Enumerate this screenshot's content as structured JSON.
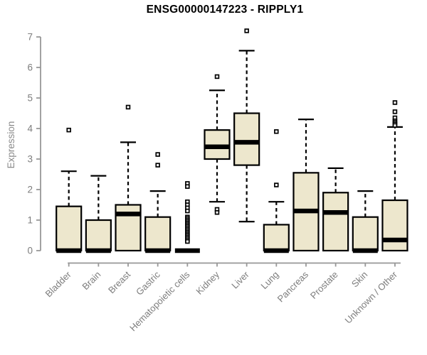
{
  "chart_data": {
    "type": "boxplot",
    "title": "ENSG00000147223 - RIPPLY1",
    "xlabel": "",
    "ylabel": "Expression",
    "ylim": [
      0,
      7
    ],
    "yticks": [
      0,
      1,
      2,
      3,
      4,
      5,
      6,
      7
    ],
    "grid": false,
    "legend": false,
    "categories": [
      "Bladder",
      "Brain",
      "Breast",
      "Gastric",
      "Hematopoietic cells",
      "Kidney",
      "Liver",
      "Lung",
      "Pancreas",
      "Prostate",
      "Skin",
      "Unknown / Other"
    ],
    "boxes": [
      {
        "category": "Bladder",
        "whisker_low": 0,
        "q1": 0,
        "median": 0,
        "q3": 1.45,
        "whisker_high": 2.6,
        "outliers": [
          3.95
        ]
      },
      {
        "category": "Brain",
        "whisker_low": 0,
        "q1": 0,
        "median": 0,
        "q3": 1.0,
        "whisker_high": 2.45,
        "outliers": []
      },
      {
        "category": "Breast",
        "whisker_low": 0,
        "q1": 0,
        "median": 1.2,
        "q3": 1.5,
        "whisker_high": 3.55,
        "outliers": [
          4.7
        ]
      },
      {
        "category": "Gastric",
        "whisker_low": 0,
        "q1": 0,
        "median": 0,
        "q3": 1.1,
        "whisker_high": 1.95,
        "outliers": [
          3.15,
          2.8
        ]
      },
      {
        "category": "Hematopoietic cells",
        "whisker_low": 0,
        "q1": 0,
        "median": 0,
        "q3": 0,
        "whisker_high": 0,
        "outliers": [
          2.2,
          2.1,
          1.6,
          1.5,
          1.4,
          1.3,
          1.1,
          1.05,
          1.0,
          0.95,
          0.9,
          0.85,
          0.8,
          0.75,
          0.7,
          0.65,
          0.6,
          0.55,
          0.5,
          0.45,
          0.4,
          0.35,
          0.3
        ]
      },
      {
        "category": "Kidney",
        "whisker_low": 1.6,
        "q1": 3.0,
        "median": 3.4,
        "q3": 3.95,
        "whisker_high": 5.25,
        "outliers": [
          5.7,
          1.35,
          1.25
        ]
      },
      {
        "category": "Liver",
        "whisker_low": 0.95,
        "q1": 2.8,
        "median": 3.55,
        "q3": 4.5,
        "whisker_high": 6.55,
        "outliers": [
          7.2
        ]
      },
      {
        "category": "Lung",
        "whisker_low": 0,
        "q1": 0,
        "median": 0,
        "q3": 0.85,
        "whisker_high": 1.6,
        "outliers": [
          3.9,
          2.15
        ]
      },
      {
        "category": "Pancreas",
        "whisker_low": 0,
        "q1": 0,
        "median": 1.3,
        "q3": 2.55,
        "whisker_high": 4.3,
        "outliers": []
      },
      {
        "category": "Prostate",
        "whisker_low": 0,
        "q1": 0,
        "median": 1.25,
        "q3": 1.9,
        "whisker_high": 2.7,
        "outliers": []
      },
      {
        "category": "Skin",
        "whisker_low": 0,
        "q1": 0,
        "median": 0,
        "q3": 1.1,
        "whisker_high": 1.95,
        "outliers": []
      },
      {
        "category": "Unknown / Other",
        "whisker_low": 0,
        "q1": 0,
        "median": 0.35,
        "q3": 1.65,
        "whisker_high": 4.05,
        "outliers": [
          4.85,
          4.55,
          4.35,
          4.25,
          4.2,
          4.15,
          4.1
        ]
      }
    ],
    "style": {
      "box_fill": "#EDE7CD",
      "box_stroke": "#000000",
      "median_color": "#000000",
      "whisker_color": "#000000",
      "outlier_color": "#000000",
      "axis_color": "#989898",
      "label_color": "#7d7d7d",
      "title_color": "#000000",
      "background": "#ffffff"
    }
  }
}
